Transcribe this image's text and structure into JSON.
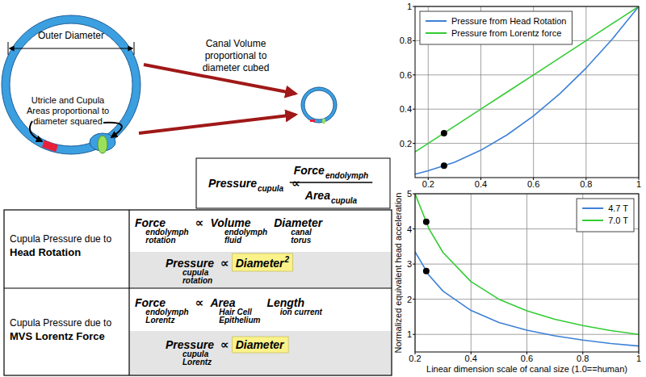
{
  "diagram": {
    "outer_diameter": "Outer Diameter",
    "area_note": [
      "Utricle and Cupula",
      "Areas proportional to",
      "diameter squared"
    ],
    "volume_note": [
      "Canal Volume",
      "proportional to",
      "diameter cubed"
    ],
    "formula": {
      "lhs": {
        "main": "Pressure",
        "sub": [
          "cupula"
        ]
      },
      "relation": "∝",
      "numerator": {
        "main": "Force",
        "sub": [
          "endolymph"
        ]
      },
      "denominator": {
        "main": "Area",
        "sub": [
          "cupula"
        ]
      }
    },
    "table": {
      "rows": [
        {
          "label": {
            "text": "Cupula Pressure due to",
            "emphasis": "Head Rotation"
          },
          "force": {
            "lhs": {
              "main": "Force",
              "sub": [
                "endolymph",
                "rotation"
              ]
            },
            "relation": "∝",
            "rhs": [
              {
                "main": "Volume",
                "sub": [
                  "endolymph",
                  "fluid"
                ]
              },
              {
                "main": "Diameter",
                "sub": [
                  "canal",
                  "torus"
                ]
              }
            ]
          },
          "pressure": {
            "lhs": {
              "main": "Pressure",
              "sub": [
                "cupula",
                "rotation"
              ]
            },
            "relation": "∝",
            "rhs": [
              {
                "main": "Diameter",
                "sup": "2"
              }
            ]
          }
        },
        {
          "label": {
            "text": "Cupula Pressure due to",
            "emphasis": "MVS Lorentz Force"
          },
          "force": {
            "lhs": {
              "main": "Force",
              "sub": [
                "endolymph",
                "Lorentz"
              ]
            },
            "relation": "∝",
            "rhs": [
              {
                "main": "Area",
                "sub": [
                  "Hair Cell",
                  "Epithelium"
                ]
              },
              {
                "main": "Length",
                "sub": [
                  "ion current"
                ]
              }
            ]
          },
          "pressure": {
            "lhs": {
              "main": "Pressure",
              "sub": [
                "cupula",
                "Lorentz"
              ]
            },
            "relation": "∝",
            "rhs": [
              {
                "main": "Diameter"
              }
            ]
          }
        }
      ]
    }
  },
  "chart_data": [
    {
      "type": "line",
      "x": [
        0.15,
        0.2,
        0.3,
        0.4,
        0.5,
        0.6,
        0.7,
        0.8,
        0.9,
        1
      ],
      "xlim": [
        0.15,
        1
      ],
      "ylim": [
        0,
        1
      ],
      "xticks": [
        0.2,
        0.4,
        0.6,
        0.8,
        1
      ],
      "yticks": [
        0.2,
        0.4,
        0.6,
        0.8,
        1
      ],
      "grid": true,
      "legend": "upper left",
      "series": [
        {
          "name": "Pressure from Head Rotation",
          "color": "#3d80d6",
          "values": [
            0.02,
            0.04,
            0.09,
            0.16,
            0.25,
            0.36,
            0.49,
            0.64,
            0.81,
            1
          ]
        },
        {
          "name": "Pressure from Lorentz force",
          "color": "#33cc33",
          "values": [
            0.15,
            0.2,
            0.3,
            0.4,
            0.5,
            0.6,
            0.7,
            0.8,
            0.9,
            1
          ]
        },
        {
          "type": "scatter",
          "color": "#000000",
          "marker": "circle",
          "x": [
            0.26,
            0.26
          ],
          "values": [
            0.26,
            0.07
          ]
        }
      ]
    },
    {
      "type": "line",
      "x": [
        0.2,
        0.25,
        0.3,
        0.4,
        0.5,
        0.6,
        0.7,
        0.8,
        0.9,
        1
      ],
      "xlim": [
        0.2,
        1
      ],
      "ylim": [
        0.5,
        5
      ],
      "xticks": [
        0.2,
        0.4,
        0.6,
        0.8,
        1
      ],
      "yticks": [
        1,
        2,
        3,
        4,
        5
      ],
      "grid": true,
      "legend": "upper right",
      "x_label": "Linear dimension scale of canal size (1.0==human)",
      "y_label": "Normalized equivalent head acceleration",
      "series": [
        {
          "name": "4.7 T",
          "color": "#3d80d6",
          "values": [
            3.35,
            2.68,
            2.23,
            1.68,
            1.34,
            1.12,
            0.96,
            0.84,
            0.74,
            0.67
          ]
        },
        {
          "name": "7.0 T",
          "color": "#33cc33",
          "values": [
            5,
            4,
            3.33,
            2.5,
            2,
            1.67,
            1.43,
            1.25,
            1.11,
            1
          ]
        },
        {
          "type": "scatter",
          "color": "#000000",
          "marker": "circle",
          "x": [
            0.24,
            0.24
          ],
          "values": [
            4.2,
            2.8
          ]
        }
      ]
    }
  ]
}
